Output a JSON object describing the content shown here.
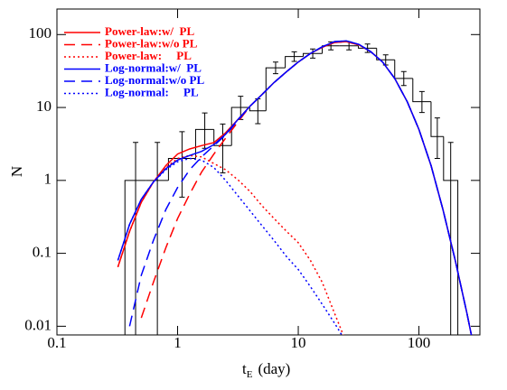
{
  "chart_data": {
    "type": "line",
    "xlabel": "t",
    "xlabel_sub": "E",
    "xlabel_unit": "(day)",
    "ylabel": "N",
    "xscale": "log",
    "yscale": "log",
    "xlim": [
      0.1,
      320
    ],
    "ylim": [
      0.0076,
      224
    ],
    "xticks": [
      0.1,
      1,
      10,
      100
    ],
    "yticks": [
      0.01,
      0.1,
      1,
      10,
      100
    ],
    "legend": "upper left",
    "histogram": {
      "color": "#000000",
      "bins": [
        0.366,
        0.55,
        0.84,
        1.41,
        2.0,
        2.8,
        3.96,
        5.4,
        7.8,
        11,
        15.8,
        22,
        31.5,
        44.6,
        63,
        89,
        126,
        160,
        210
      ],
      "counts": [
        1,
        1,
        2,
        5,
        3,
        10,
        9,
        35,
        50,
        55,
        70,
        70,
        65,
        45,
        25,
        12,
        4,
        1
      ],
      "err_lo": [
        0,
        0,
        0.59,
        2.76,
        1.27,
        6.84,
        6,
        29.1,
        42.9,
        47.6,
        61.6,
        61.6,
        56.9,
        38.3,
        20,
        8.54,
        2,
        0
      ],
      "err_hi": [
        3.32,
        3.32,
        4.66,
        8.4,
        5.94,
        14.28,
        13.12,
        41.98,
        58.12,
        63.47,
        79.41,
        79.41,
        74.11,
        52.76,
        31.07,
        16.57,
        7.18,
        3.32
      ]
    },
    "x": [
      0.32,
      0.4,
      0.5,
      0.63,
      0.8,
      1,
      1.26,
      1.58,
      2,
      2.5,
      3.2,
      4,
      5,
      6.3,
      8,
      10,
      12.6,
      15.8,
      20,
      25,
      32,
      40,
      50,
      63,
      80,
      100,
      126,
      158,
      200,
      250,
      280
    ],
    "series": [
      {
        "name": "Power-law:w/  PL",
        "color": "#ff0000",
        "dash": "solid",
        "values": [
          0.065,
          0.2,
          0.5,
          0.95,
          1.6,
          2.3,
          2.7,
          3.0,
          3.3,
          4.5,
          7,
          10.5,
          15,
          22,
          31,
          42,
          55,
          67,
          78,
          80,
          72,
          58,
          42,
          25,
          12,
          5,
          1.6,
          0.4,
          0.08,
          0.015,
          0.006
        ]
      },
      {
        "name": "Power-law:w/o PL",
        "color": "#ff0000",
        "dash": "dashed",
        "values": [
          null,
          null,
          0.013,
          0.04,
          0.12,
          0.3,
          0.65,
          1.3,
          2.3,
          3.8,
          6.5,
          10.5,
          15,
          22,
          31,
          42,
          55,
          67,
          78,
          80,
          72,
          58,
          42,
          25,
          12,
          5,
          1.6,
          0.4,
          0.08,
          0.015,
          0.006
        ]
      },
      {
        "name": "Power-law:     PL",
        "color": "#ff0000",
        "dash": "dotted",
        "values": [
          0.065,
          0.2,
          0.5,
          0.95,
          1.5,
          2.0,
          2.2,
          2.1,
          1.7,
          1.4,
          1.0,
          0.7,
          0.45,
          0.3,
          0.2,
          0.14,
          0.08,
          0.04,
          0.015,
          0.006,
          null,
          null,
          null,
          null,
          null,
          null,
          null,
          null,
          null,
          null,
          null
        ]
      },
      {
        "name": "Log-normal:w/  PL",
        "color": "#0000ff",
        "dash": "solid",
        "values": [
          0.08,
          0.25,
          0.55,
          0.95,
          1.45,
          1.9,
          2.2,
          2.5,
          3.1,
          4.3,
          7,
          10.5,
          15,
          22,
          31,
          42,
          55,
          68,
          80,
          82,
          73,
          58,
          42,
          25,
          12,
          5,
          1.6,
          0.4,
          0.08,
          0.015,
          0.006
        ]
      },
      {
        "name": "Log-normal:w/o PL",
        "color": "#0000ff",
        "dash": "dashed",
        "values": [
          null,
          0.01,
          0.05,
          0.15,
          0.4,
          0.8,
          1.4,
          2.1,
          3.0,
          4.2,
          6.8,
          10.5,
          15,
          22,
          31,
          42,
          55,
          68,
          80,
          82,
          73,
          58,
          42,
          25,
          12,
          5,
          1.6,
          0.4,
          0.08,
          0.015,
          0.006
        ]
      },
      {
        "name": "Log-normal:     PL",
        "color": "#0000ff",
        "dash": "dotted",
        "values": [
          0.08,
          0.25,
          0.55,
          0.95,
          1.4,
          1.8,
          2.0,
          1.9,
          1.5,
          1.0,
          0.6,
          0.38,
          0.24,
          0.15,
          0.09,
          0.06,
          0.035,
          0.02,
          0.011,
          0.006,
          null,
          null,
          null,
          null,
          null,
          null,
          null,
          null,
          null,
          null,
          null
        ]
      }
    ]
  }
}
